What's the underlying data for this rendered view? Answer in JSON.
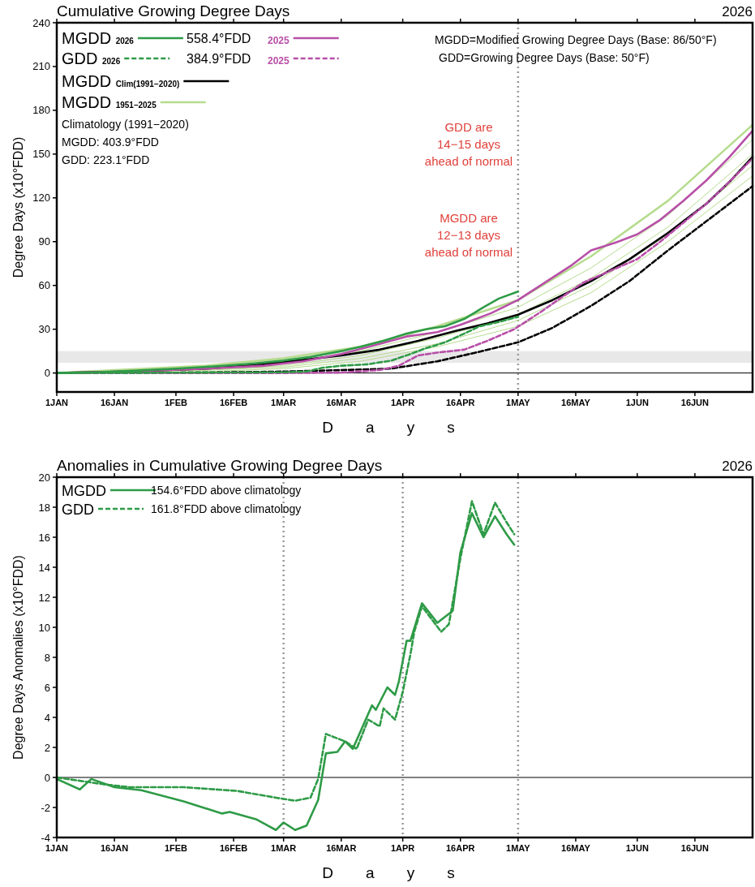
{
  "chart_data": [
    {
      "type": "line",
      "title": "Cumulative Growing Degree Days",
      "subtitle": "2026",
      "xlabel": "Days",
      "ylabel": "Degree Days (x10°FDD)",
      "xlim": [
        "--01-01",
        "--07-01"
      ],
      "xticks": [
        {
          "value": "--01-01",
          "label": "1JAN"
        },
        {
          "value": "--01-16",
          "label": "16JAN"
        },
        {
          "value": "--02-01",
          "label": "1FEB"
        },
        {
          "value": "--02-16",
          "label": "16FEB"
        },
        {
          "value": "--03-01",
          "label": "1MAR"
        },
        {
          "value": "--03-16",
          "label": "16MAR"
        },
        {
          "value": "--04-01",
          "label": "1APR"
        },
        {
          "value": "--04-16",
          "label": "16APR"
        },
        {
          "value": "--05-01",
          "label": "1MAY"
        },
        {
          "value": "--05-16",
          "label": "16MAY"
        },
        {
          "value": "--06-01",
          "label": "1JUN"
        },
        {
          "value": "--06-16",
          "label": "16JUN"
        }
      ],
      "ylim": [
        -13,
        240
      ],
      "yticks": [
        0,
        30,
        60,
        90,
        120,
        150,
        180,
        210,
        240
      ],
      "grid": false,
      "legend": "top left",
      "bands": [
        {
          "axis": "y",
          "from": 7,
          "to": 15,
          "color": "#e8e8e8"
        }
      ],
      "ref_lines": [
        {
          "axis": "y",
          "value": 0,
          "color": "#000000",
          "line_style": "solid"
        },
        {
          "axis": "x",
          "value": "--05-01",
          "color": "#999999",
          "line_style": "dotted"
        }
      ],
      "annotations": [
        "558.4°FDD",
        "384.9°FDD",
        "Climatology (1991−2020)",
        "MGDD:  403.9°FDD",
        "GDD:     223.1°FDD",
        "MGDD=Modified Growing Degree Days (Base: 86/50°F)",
        "GDD=Growing Degree Days (Base: 50°F)",
        "GDD are\n14−15 days\nahead of normal",
        "MGDD are\n12−13 days\nahead of normal"
      ],
      "series": [
        {
          "name": "MGDD 1951–2025",
          "color": "#b6dc8e",
          "x": [
            "--01-01",
            "--02-09",
            "--03-01",
            "--03-21",
            "--04-10",
            "--05-01",
            "--05-20",
            "--06-09",
            "--07-01"
          ],
          "values": [
            0,
            5,
            10,
            18,
            32,
            50,
            80,
            118,
            170
          ]
        },
        {
          "color": "#b6dc8e",
          "x": [
            "--01-01",
            "--02-09",
            "--03-01",
            "--03-21",
            "--04-10",
            "--05-01",
            "--05-20",
            "--06-09",
            "--07-01"
          ],
          "values": [
            0,
            2,
            5,
            12,
            24,
            40,
            65,
            100,
            150
          ]
        },
        {
          "color": "#b6dc8e",
          "x": [
            "--01-01",
            "--02-09",
            "--03-01",
            "--03-21",
            "--04-10",
            "--05-01",
            "--05-20",
            "--06-09",
            "--07-01"
          ],
          "values": [
            0,
            1,
            3,
            8,
            18,
            32,
            55,
            90,
            135
          ]
        },
        {
          "color": "#b6dc8e",
          "x": [
            "--01-01",
            "--02-09",
            "--03-01",
            "--03-21",
            "--04-10",
            "--05-01",
            "--05-20",
            "--06-09",
            "--07-01"
          ],
          "values": [
            0,
            3,
            7,
            15,
            28,
            45,
            72,
            108,
            160
          ]
        },
        {
          "color": "#b6dc8e",
          "x": [
            "--01-01",
            "--02-09",
            "--03-01",
            "--03-21",
            "--04-10",
            "--05-01",
            "--05-20",
            "--06-09",
            "--07-01"
          ],
          "values": [
            0,
            2,
            4,
            10,
            20,
            36,
            60,
            95,
            142
          ]
        },
        {
          "name": "MGDD Clim(1991−2020)",
          "color": "#000000",
          "x": [
            "--01-01",
            "--01-20",
            "--02-09",
            "--02-24",
            "--03-06",
            "--03-16",
            "--03-26",
            "--04-05",
            "--04-15",
            "--04-23",
            "--05-01",
            "--05-10",
            "--05-20",
            "--05-30",
            "--06-09",
            "--06-19",
            "--06-25",
            "--07-01"
          ],
          "values": [
            0,
            1,
            3,
            6,
            9,
            12,
            16,
            22,
            29,
            34,
            40,
            50,
            63,
            78,
            96,
            116,
            131,
            148
          ]
        },
        {
          "color": "#000000",
          "line_style": "dashed",
          "x": [
            "--01-01",
            "--02-09",
            "--03-01",
            "--03-16",
            "--03-29",
            "--04-10",
            "--04-20",
            "--05-01",
            "--05-10",
            "--05-20",
            "--05-30",
            "--06-09",
            "--06-19",
            "--06-25",
            "--07-01"
          ],
          "values": [
            0,
            0.3,
            1,
            2,
            3,
            8,
            14,
            21,
            31,
            46,
            63,
            84,
            104,
            116,
            128
          ]
        },
        {
          "name": "2025",
          "color": "#b84fa8",
          "line_style": "dashed",
          "x": [
            "--01-01",
            "--03-01",
            "--03-16",
            "--03-26",
            "--03-31",
            "--04-05",
            "--04-10",
            "--04-17",
            "--04-23",
            "--04-30",
            "--05-07",
            "--05-13",
            "--05-18",
            "--05-25",
            "--06-01",
            "--06-07",
            "--06-13",
            "--06-19",
            "--06-25",
            "--07-01"
          ],
          "values": [
            0,
            0,
            0.3,
            2,
            5,
            12,
            14,
            16,
            22,
            30,
            42,
            53,
            62,
            70,
            78,
            90,
            103,
            116,
            131,
            147
          ]
        },
        {
          "name": "2025",
          "color": "#b84fa8",
          "x": [
            "--01-01",
            "--01-20",
            "--02-09",
            "--02-24",
            "--03-06",
            "--03-16",
            "--03-26",
            "--04-02",
            "--04-10",
            "--04-16",
            "--04-24",
            "--05-01",
            "--05-08",
            "--05-15",
            "--05-20",
            "--05-26",
            "--06-01",
            "--06-07",
            "--06-13",
            "--06-19",
            "--06-25",
            "--07-01"
          ],
          "values": [
            0,
            1,
            3,
            5,
            8,
            13,
            20,
            25,
            28,
            33,
            41,
            50,
            62,
            74,
            84,
            89,
            95,
            105,
            118,
            132,
            148,
            166
          ]
        },
        {
          "name": "MGDD 2026",
          "color": "#2e9b47",
          "x": [
            "--01-01",
            "--01-11",
            "--01-21",
            "--02-01",
            "--02-11",
            "--02-21",
            "--03-01",
            "--03-08",
            "--03-16",
            "--03-21",
            "--03-27",
            "--04-02",
            "--04-07",
            "--04-12",
            "--04-17",
            "--04-22",
            "--04-26",
            "--05-01"
          ],
          "values": [
            0,
            0.5,
            1.5,
            3,
            4.5,
            6.5,
            8.5,
            11,
            15,
            18,
            22,
            27,
            30,
            32,
            37,
            45,
            51,
            55.8
          ]
        },
        {
          "name": "GDD 2026",
          "color": "#2e9b47",
          "line_style": "dashed",
          "x": [
            "--01-01",
            "--02-01",
            "--03-01",
            "--03-07",
            "--03-11",
            "--03-16",
            "--03-23",
            "--03-29",
            "--04-03",
            "--04-07",
            "--04-12",
            "--04-17",
            "--04-21",
            "--04-26",
            "--05-01"
          ],
          "values": [
            0,
            0.2,
            0.5,
            1,
            3.5,
            5,
            6,
            8.5,
            13,
            17,
            21,
            27,
            32,
            35,
            38.5
          ]
        }
      ]
    },
    {
      "type": "line",
      "title": "Anomalies in Cumulative Growing Degree Days",
      "subtitle": "2026",
      "xlabel": "Days",
      "ylabel": "Degree Days Anomalies (x10°FDD)",
      "xlim": [
        "--01-01",
        "--07-01"
      ],
      "xticks": [
        {
          "value": "--01-01",
          "label": "1JAN"
        },
        {
          "value": "--01-16",
          "label": "16JAN"
        },
        {
          "value": "--02-01",
          "label": "1FEB"
        },
        {
          "value": "--02-16",
          "label": "16FEB"
        },
        {
          "value": "--03-01",
          "label": "1MAR"
        },
        {
          "value": "--03-16",
          "label": "16MAR"
        },
        {
          "value": "--04-01",
          "label": "1APR"
        },
        {
          "value": "--04-16",
          "label": "16APR"
        },
        {
          "value": "--05-01",
          "label": "1MAY"
        },
        {
          "value": "--05-16",
          "label": "16MAY"
        },
        {
          "value": "--06-01",
          "label": "1JUN"
        },
        {
          "value": "--06-16",
          "label": "16JUN"
        }
      ],
      "ylim": [
        -4,
        20
      ],
      "yticks": [
        -4,
        -2,
        0,
        2,
        4,
        6,
        8,
        10,
        12,
        14,
        16,
        18,
        20
      ],
      "grid": false,
      "legend": "top left",
      "ref_lines": [
        {
          "axis": "y",
          "value": 0,
          "color": "#000000",
          "line_style": "solid"
        },
        {
          "axis": "x",
          "value": "--03-01",
          "color": "#999999",
          "line_style": "dotted"
        },
        {
          "axis": "x",
          "value": "--04-01",
          "color": "#999999",
          "line_style": "dotted"
        },
        {
          "axis": "x",
          "value": "--05-01",
          "color": "#999999",
          "line_style": "dotted"
        }
      ],
      "annotations": [
        "154.6°FDD above climatology",
        "161.8°FDD above climatology"
      ],
      "series": [
        {
          "name": "MGDD",
          "color": "#2e9b47",
          "x": [
            "--01-01",
            "--01-07",
            "--01-10",
            "--01-16",
            "--01-23",
            "--02-03",
            "--02-13",
            "--02-15",
            "--02-22",
            "--02-27",
            "--03-01",
            "--03-04",
            "--03-07",
            "--03-10",
            "--03-12",
            "--03-15",
            "--03-17",
            "--03-19",
            "--03-24",
            "--03-25",
            "--03-28",
            "--03-30",
            "--03-31",
            "--04-02",
            "--04-03",
            "--04-06",
            "--04-10",
            "--04-14",
            "--04-16",
            "--04-19",
            "--04-22",
            "--04-25",
            "--04-28",
            "--04-30"
          ],
          "values": [
            -0.1,
            -0.8,
            -0.1,
            -0.65,
            -0.85,
            -1.6,
            -2.4,
            -2.3,
            -2.8,
            -3.5,
            -3.0,
            -3.5,
            -3.2,
            -1.5,
            1.6,
            1.7,
            2.4,
            1.9,
            4.8,
            4.5,
            6.0,
            5.5,
            6.4,
            9.1,
            9.1,
            11.6,
            10.3,
            11.1,
            15.0,
            17.6,
            16.0,
            17.4,
            16.2,
            15.5
          ]
        },
        {
          "name": "GDD",
          "color": "#2e9b47",
          "line_style": "dashed",
          "x": [
            "--01-01",
            "--01-13",
            "--01-20",
            "--02-03",
            "--02-17",
            "--02-27",
            "--03-04",
            "--03-08",
            "--03-10",
            "--03-12",
            "--03-17",
            "--03-20",
            "--03-23",
            "--03-26",
            "--03-27",
            "--03-30",
            "--04-01",
            "--04-03",
            "--04-04",
            "--04-06",
            "--04-11",
            "--04-13",
            "--04-16",
            "--04-19",
            "--04-22",
            "--04-25",
            "--04-28",
            "--04-30"
          ],
          "values": [
            0,
            -0.45,
            -0.65,
            -0.65,
            -0.9,
            -1.35,
            -1.55,
            -1.35,
            -0.1,
            2.9,
            2.4,
            1.9,
            3.85,
            3.4,
            4.6,
            3.85,
            5.7,
            8.2,
            9.7,
            11.4,
            9.7,
            10.2,
            14.6,
            18.4,
            16.2,
            18.3,
            17.0,
            16.2
          ]
        }
      ]
    }
  ]
}
